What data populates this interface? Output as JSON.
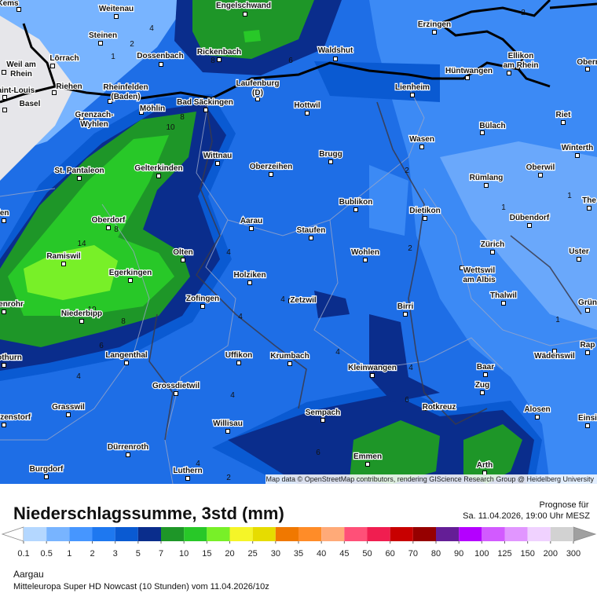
{
  "legend": {
    "title": "Niederschlagssumme, 3std (mm)",
    "ticks": [
      0.1,
      0.5,
      1,
      2,
      3,
      5,
      7,
      10,
      15,
      20,
      25,
      30,
      35,
      40,
      45,
      50,
      60,
      70,
      80,
      90,
      100,
      125,
      150,
      200,
      300
    ],
    "colors": [
      "#b4d7ff",
      "#78b4ff",
      "#4696ff",
      "#1e78f0",
      "#0a5ad2",
      "#0a2d8c",
      "#1e9628",
      "#28c828",
      "#78f028",
      "#f5f528",
      "#e6dc00",
      "#f07800",
      "#ff8c28",
      "#ffaa78",
      "#ff5078",
      "#f01e50",
      "#c80000",
      "#960000",
      "#641e96",
      "#b400ff",
      "#d25aff",
      "#e196ff",
      "#f0d2ff",
      "#d2d2d2"
    ],
    "below_color": "#ffffff",
    "above_color": "#a0a0a0"
  },
  "forecast": {
    "label": "Prognose für",
    "time": "Sa. 11.04.2026, 19:00 Uhr MESZ"
  },
  "footer": {
    "region": "Aargau",
    "model": "Mitteleuropa Super HD Nowcast (10 Stunden) vom 11.04.2026/10z"
  },
  "attribution": "Map data © OpenStreetMap contributors, rendering GIScience Research Group @ Heidelberg University",
  "places": [
    [
      "Kems"
    ],
    [
      "Weitenau"
    ],
    [
      "Engelschwand"
    ],
    [
      "Steinen"
    ],
    [
      "Lörrach"
    ],
    [
      "Dossenbach"
    ],
    [
      "Rickenbach"
    ],
    [
      "Waldshut"
    ],
    [
      "Erzingen"
    ],
    [
      "Ellikon",
      "am Rhein"
    ],
    [
      "Weil am",
      "Rhein"
    ],
    [
      "Saint-Louis"
    ],
    [
      "Basel"
    ],
    [
      "Riehen"
    ],
    [
      "Rheinfelden",
      "(Baden)"
    ],
    [
      "Möhlin"
    ],
    [
      "Grenzach-",
      "Wyhlen"
    ],
    [
      "Laufenburg",
      "(D)"
    ],
    [
      "Bad Säckingen"
    ],
    [
      "Hottwil"
    ],
    [
      "Lienheim"
    ],
    [
      "Hüntwangen"
    ],
    [
      "Oberr"
    ],
    [
      "Riet"
    ],
    [
      "Bülach"
    ],
    [
      "Winterth"
    ],
    [
      "Wasen"
    ],
    [
      "Brugg"
    ],
    [
      "Wittnau"
    ],
    [
      "Gelterkinden"
    ],
    [
      "St. Pantaleon"
    ],
    [
      "Oberzeihen"
    ],
    [
      "Oberwil"
    ],
    [
      "Rümlang"
    ],
    [
      "The"
    ],
    [
      "Bublikon"
    ],
    [
      "Dietikon"
    ],
    [
      "Dübendorf"
    ],
    [
      "Aarau"
    ],
    [
      "Oberdorf"
    ],
    [
      "Staufen"
    ],
    [
      "Zürich"
    ],
    [
      "Uster"
    ],
    [
      "Wohlen"
    ],
    [
      "Ramiswil"
    ],
    [
      "Olten"
    ],
    [
      "Egerkingen"
    ],
    [
      "Holziken"
    ],
    [
      "Wettswil",
      "am Albis"
    ],
    [
      "Thalwil"
    ],
    [
      "Zofingen"
    ],
    [
      "Zetzwil"
    ],
    [
      "Birri"
    ],
    [
      "Niederbipp"
    ],
    [
      "Grün"
    ],
    [
      "Rap"
    ],
    [
      "Wädenswil"
    ],
    [
      "Langenthal"
    ],
    [
      "Uffikon"
    ],
    [
      "Krumbach"
    ],
    [
      "Kleinwangen"
    ],
    [
      "Baar"
    ],
    [
      "Zug"
    ],
    [
      "Grossdietwil"
    ],
    [
      "Grasswil"
    ],
    [
      "Sempach"
    ],
    [
      "Rotkreuz"
    ],
    [
      "Alosen"
    ],
    [
      "Einsi"
    ],
    [
      "tzenstorf"
    ],
    [
      "Willisau"
    ],
    [
      "Dürrenroth"
    ],
    [
      "Emmen"
    ],
    [
      "Arth"
    ],
    [
      "Burgdorf"
    ],
    [
      "Luthern"
    ],
    [
      "fen"
    ],
    [
      "enrohr"
    ],
    [
      "othurn"
    ]
  ],
  "contour_labels": [
    "8",
    "10",
    "2",
    "4",
    "1",
    "6",
    "8",
    "2",
    "2",
    "1",
    "1",
    "2",
    "4",
    "14",
    "8",
    "4",
    "4",
    "10",
    "8",
    "6",
    "4",
    "4",
    "4",
    "4",
    "6",
    "1",
    "6",
    "4",
    "2"
  ]
}
